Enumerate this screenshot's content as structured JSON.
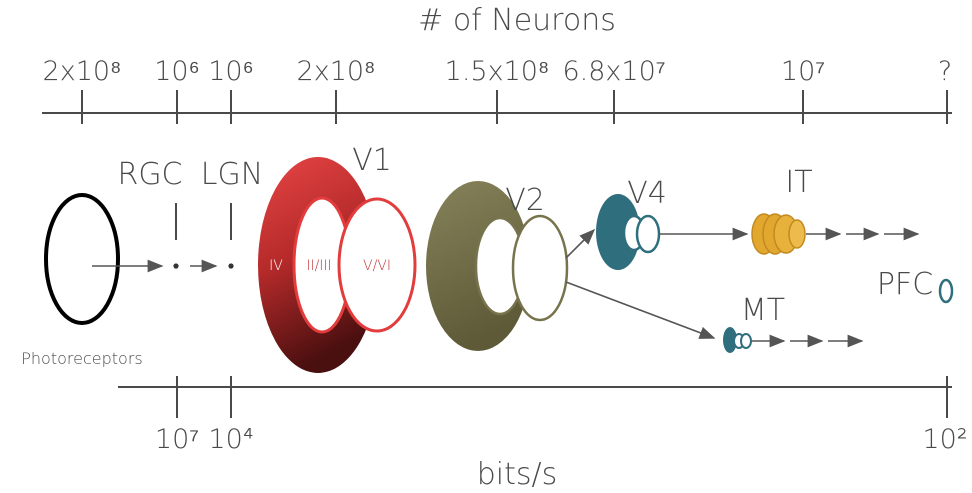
{
  "top_axis": {
    "title": "# of Neurons",
    "ticks": [
      "2x10⁸",
      "10⁶",
      "10⁶",
      "2x10⁸",
      "1.5x10⁸",
      "6.8x10⁷",
      "10⁷",
      "?"
    ]
  },
  "bottom_axis": {
    "title": "bits/s",
    "ticks": [
      "10⁷",
      "10⁴",
      "10²"
    ]
  },
  "stages": {
    "photoreceptors": "Photoreceptors",
    "rgc": "RGC",
    "lgn": "LGN",
    "v1": "V1",
    "v1_layers": [
      "IV",
      "II/III",
      "V/VI"
    ],
    "v2": "V2",
    "v4": "V4",
    "it": "IT",
    "mt": "MT",
    "pfc": "PFC"
  },
  "colors": {
    "v1_red": "#e23c3c",
    "v1_dark": "#5a1414",
    "v2_olive": "#77734d",
    "v4_teal": "#2f6f7d",
    "it_gold": "#e2a72f"
  }
}
